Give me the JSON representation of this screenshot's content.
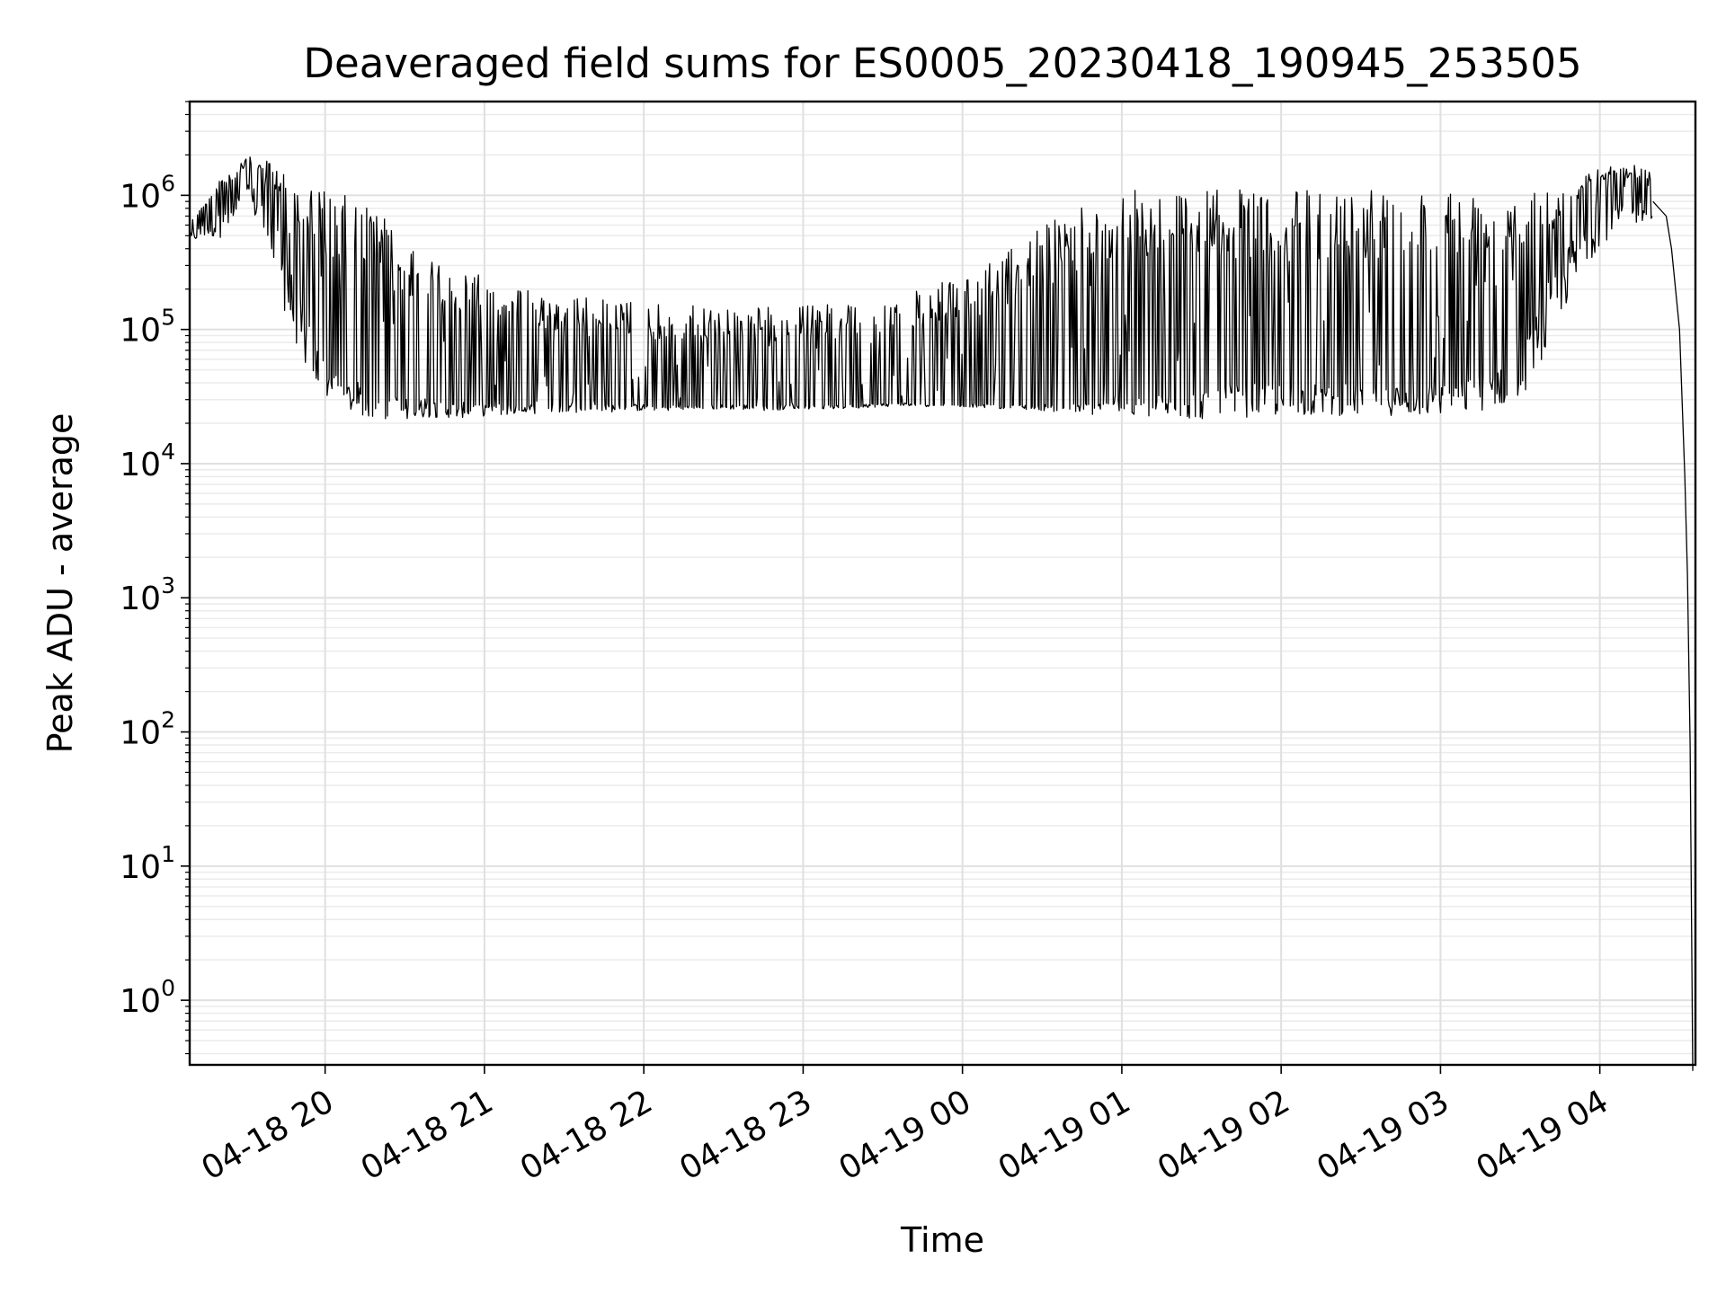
{
  "chart_data": {
    "type": "line",
    "title": "Deaveraged field sums for ES0005_20230418_190945_253505",
    "xlabel": "Time",
    "ylabel": "Peak ADU - average",
    "y_scale": "log",
    "grid": true,
    "grid_minor": true,
    "line_color": "#000000",
    "grid_color": "#e0e0e0",
    "xlim": [
      "2023-04-18 19:09",
      "2023-04-19 04:36"
    ],
    "ylim": [
      0.33,
      5000000
    ],
    "x_ticks": [
      {
        "value": "2023-04-18 20:00",
        "label": "04-18 20"
      },
      {
        "value": "2023-04-18 21:00",
        "label": "04-18 21"
      },
      {
        "value": "2023-04-18 22:00",
        "label": "04-18 22"
      },
      {
        "value": "2023-04-18 23:00",
        "label": "04-18 23"
      },
      {
        "value": "2023-04-19 00:00",
        "label": "04-19 00"
      },
      {
        "value": "2023-04-19 01:00",
        "label": "04-19 01"
      },
      {
        "value": "2023-04-19 02:00",
        "label": "04-19 02"
      },
      {
        "value": "2023-04-19 03:00",
        "label": "04-19 03"
      },
      {
        "value": "2023-04-19 04:00",
        "label": "04-19 04"
      }
    ],
    "y_ticks": [
      {
        "value": 1,
        "base": "10",
        "exp": "0"
      },
      {
        "value": 10,
        "base": "10",
        "exp": "1"
      },
      {
        "value": 100,
        "base": "10",
        "exp": "2"
      },
      {
        "value": 1000,
        "base": "10",
        "exp": "3"
      },
      {
        "value": 10000,
        "base": "10",
        "exp": "4"
      },
      {
        "value": 100000,
        "base": "10",
        "exp": "5"
      },
      {
        "value": 1000000,
        "base": "10",
        "exp": "6"
      }
    ],
    "series": [
      {
        "x": [
          "2023-04-18 19:09",
          "2023-04-18 19:15",
          "2023-04-18 19:20",
          "2023-04-18 19:25",
          "2023-04-18 19:30",
          "2023-04-18 19:35",
          "2023-04-18 19:40",
          "2023-04-18 19:45",
          "2023-04-18 19:50",
          "2023-04-18 19:55",
          "2023-04-18 20:00",
          "2023-04-18 20:05",
          "2023-04-18 20:10",
          "2023-04-18 20:15",
          "2023-04-18 20:20",
          "2023-04-18 20:25",
          "2023-04-18 20:30",
          "2023-04-18 20:40",
          "2023-04-18 20:50",
          "2023-04-18 21:00",
          "2023-04-18 21:15",
          "2023-04-18 21:30",
          "2023-04-18 21:45",
          "2023-04-18 22:00",
          "2023-04-18 22:15",
          "2023-04-18 22:30",
          "2023-04-18 22:45",
          "2023-04-18 23:00",
          "2023-04-18 23:15",
          "2023-04-18 23:30",
          "2023-04-18 23:45",
          "2023-04-19 00:00",
          "2023-04-19 00:15",
          "2023-04-19 00:30",
          "2023-04-19 00:45",
          "2023-04-19 01:00",
          "2023-04-19 01:15",
          "2023-04-19 01:30",
          "2023-04-19 01:45",
          "2023-04-19 02:00",
          "2023-04-19 02:15",
          "2023-04-19 02:30",
          "2023-04-19 02:45",
          "2023-04-19 03:00",
          "2023-04-19 03:15",
          "2023-04-19 03:30",
          "2023-04-19 03:40",
          "2023-04-19 03:50",
          "2023-04-19 04:00",
          "2023-04-19 04:10",
          "2023-04-19 04:20",
          "2023-04-19 04:25",
          "2023-04-19 04:27",
          "2023-04-19 04:30",
          "2023-04-19 04:32",
          "2023-04-19 04:33",
          "2023-04-19 04:34",
          "2023-04-19 04:35"
        ],
        "low": [
          420000,
          450000,
          400000,
          520000,
          700000,
          500000,
          200000,
          90000,
          50000,
          30000,
          25000,
          22000,
          20000,
          19000,
          18000,
          18000,
          18000,
          20000,
          20000,
          21000,
          22000,
          23000,
          23000,
          24000,
          24000,
          25000,
          24000,
          25000,
          25000,
          26000,
          26000,
          26000,
          25000,
          24000,
          22000,
          20000,
          19000,
          18000,
          18000,
          19000,
          19000,
          19000,
          19000,
          19000,
          20000,
          22000,
          50000,
          150000,
          350000,
          500000,
          600000,
          300000,
          100000,
          40000,
          7000,
          1000,
          60,
          0.3
        ],
        "high": [
          700000,
          900000,
          1300000,
          1500000,
          2000000,
          1800000,
          1800000,
          1500000,
          1300000,
          1200000,
          1100000,
          1000000,
          1000000,
          900000,
          800000,
          600000,
          400000,
          350000,
          300000,
          250000,
          200000,
          180000,
          170000,
          160000,
          150000,
          150000,
          150000,
          150000,
          160000,
          170000,
          200000,
          250000,
          350000,
          600000,
          900000,
          1100000,
          1100000,
          1100000,
          1100000,
          1100000,
          1100000,
          1100000,
          1100000,
          1100000,
          1100000,
          1100000,
          1200000,
          1300000,
          1600000,
          1800000,
          1500000,
          1000000,
          800000,
          300000,
          50000,
          5000,
          200,
          0.3
        ],
        "typical": [
          500000,
          600000,
          700000,
          800000,
          1100000,
          1000000,
          600000,
          300000,
          150000,
          80000,
          50000,
          40000,
          35000,
          32000,
          30000,
          29000,
          28000,
          28000,
          27000,
          27000,
          27000,
          27000,
          27000,
          27000,
          27000,
          27000,
          27000,
          27000,
          27000,
          28000,
          28000,
          28000,
          27000,
          27000,
          27000,
          28000,
          30000,
          32000,
          35000,
          35000,
          35000,
          35000,
          35000,
          35000,
          40000,
          60000,
          150000,
          400000,
          700000,
          800000,
          900000,
          700000,
          400000,
          100000,
          8000,
          1500,
          80,
          0.3
        ]
      }
    ]
  }
}
